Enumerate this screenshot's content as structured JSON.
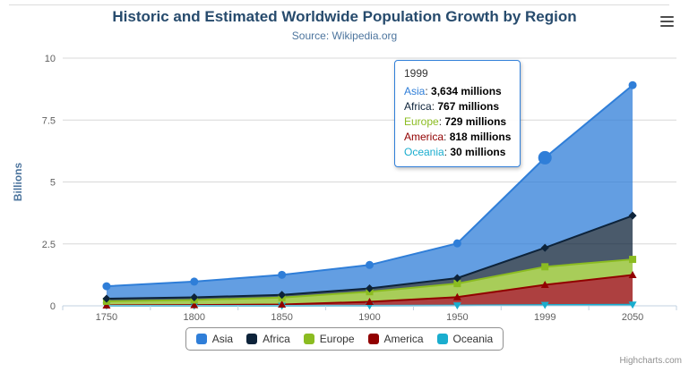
{
  "credits": "Highcharts.com",
  "icons": {
    "context_menu": "hamburger-menu-icon"
  },
  "colors": {
    "title": "#274b6d",
    "subtitle": "#4d759e",
    "axis_title": "#4d759e",
    "axis_label": "#606060",
    "grid": "#d8d8d8",
    "axis_line": "#c0d0e0",
    "legend_border": "#909090",
    "tooltip_border": "#2f7ed8",
    "credits": "#909090"
  },
  "chart_data": {
    "type": "area",
    "stacking": "normal",
    "title": "Historic and Estimated Worldwide Population Growth by Region",
    "subtitle": "Source: Wikipedia.org",
    "categories": [
      "1750",
      "1800",
      "1850",
      "1900",
      "1950",
      "1999",
      "2050"
    ],
    "xlabel": "",
    "ylabel": "Billions",
    "ylim": [
      0,
      10
    ],
    "yticks": [
      0,
      2.5,
      5,
      7.5,
      10
    ],
    "unit": "millions",
    "grid": true,
    "legend_position": "bottom",
    "series": [
      {
        "name": "Asia",
        "color": "#2f7ed8",
        "marker": "circle",
        "values": [
          502,
          635,
          809,
          947,
          1402,
          3634,
          5268
        ]
      },
      {
        "name": "Africa",
        "color": "#0d233a",
        "marker": "diamond",
        "values": [
          106,
          107,
          111,
          133,
          221,
          767,
          1766
        ]
      },
      {
        "name": "Europe",
        "color": "#8bbc21",
        "marker": "square",
        "values": [
          163,
          203,
          276,
          408,
          547,
          729,
          628
        ]
      },
      {
        "name": "America",
        "color": "#910000",
        "marker": "triangle",
        "values": [
          18,
          31,
          54,
          156,
          339,
          818,
          1201
        ]
      },
      {
        "name": "Oceania",
        "color": "#1aadce",
        "marker": "triangle-down",
        "values": [
          2,
          2,
          2,
          6,
          13,
          30,
          46
        ]
      }
    ]
  },
  "tooltip": {
    "title": "1999",
    "hover_series": "Asia",
    "hover_category_index": 5,
    "rows": [
      {
        "name": "Asia",
        "value": "3,634 millions",
        "color": "#2f7ed8"
      },
      {
        "name": "Africa",
        "value": "767 millions",
        "color": "#0d233a"
      },
      {
        "name": "Europe",
        "value": "729 millions",
        "color": "#8bbc21"
      },
      {
        "name": "America",
        "value": "818 millions",
        "color": "#910000"
      },
      {
        "name": "Oceania",
        "value": "30 millions",
        "color": "#1aadce"
      }
    ]
  }
}
